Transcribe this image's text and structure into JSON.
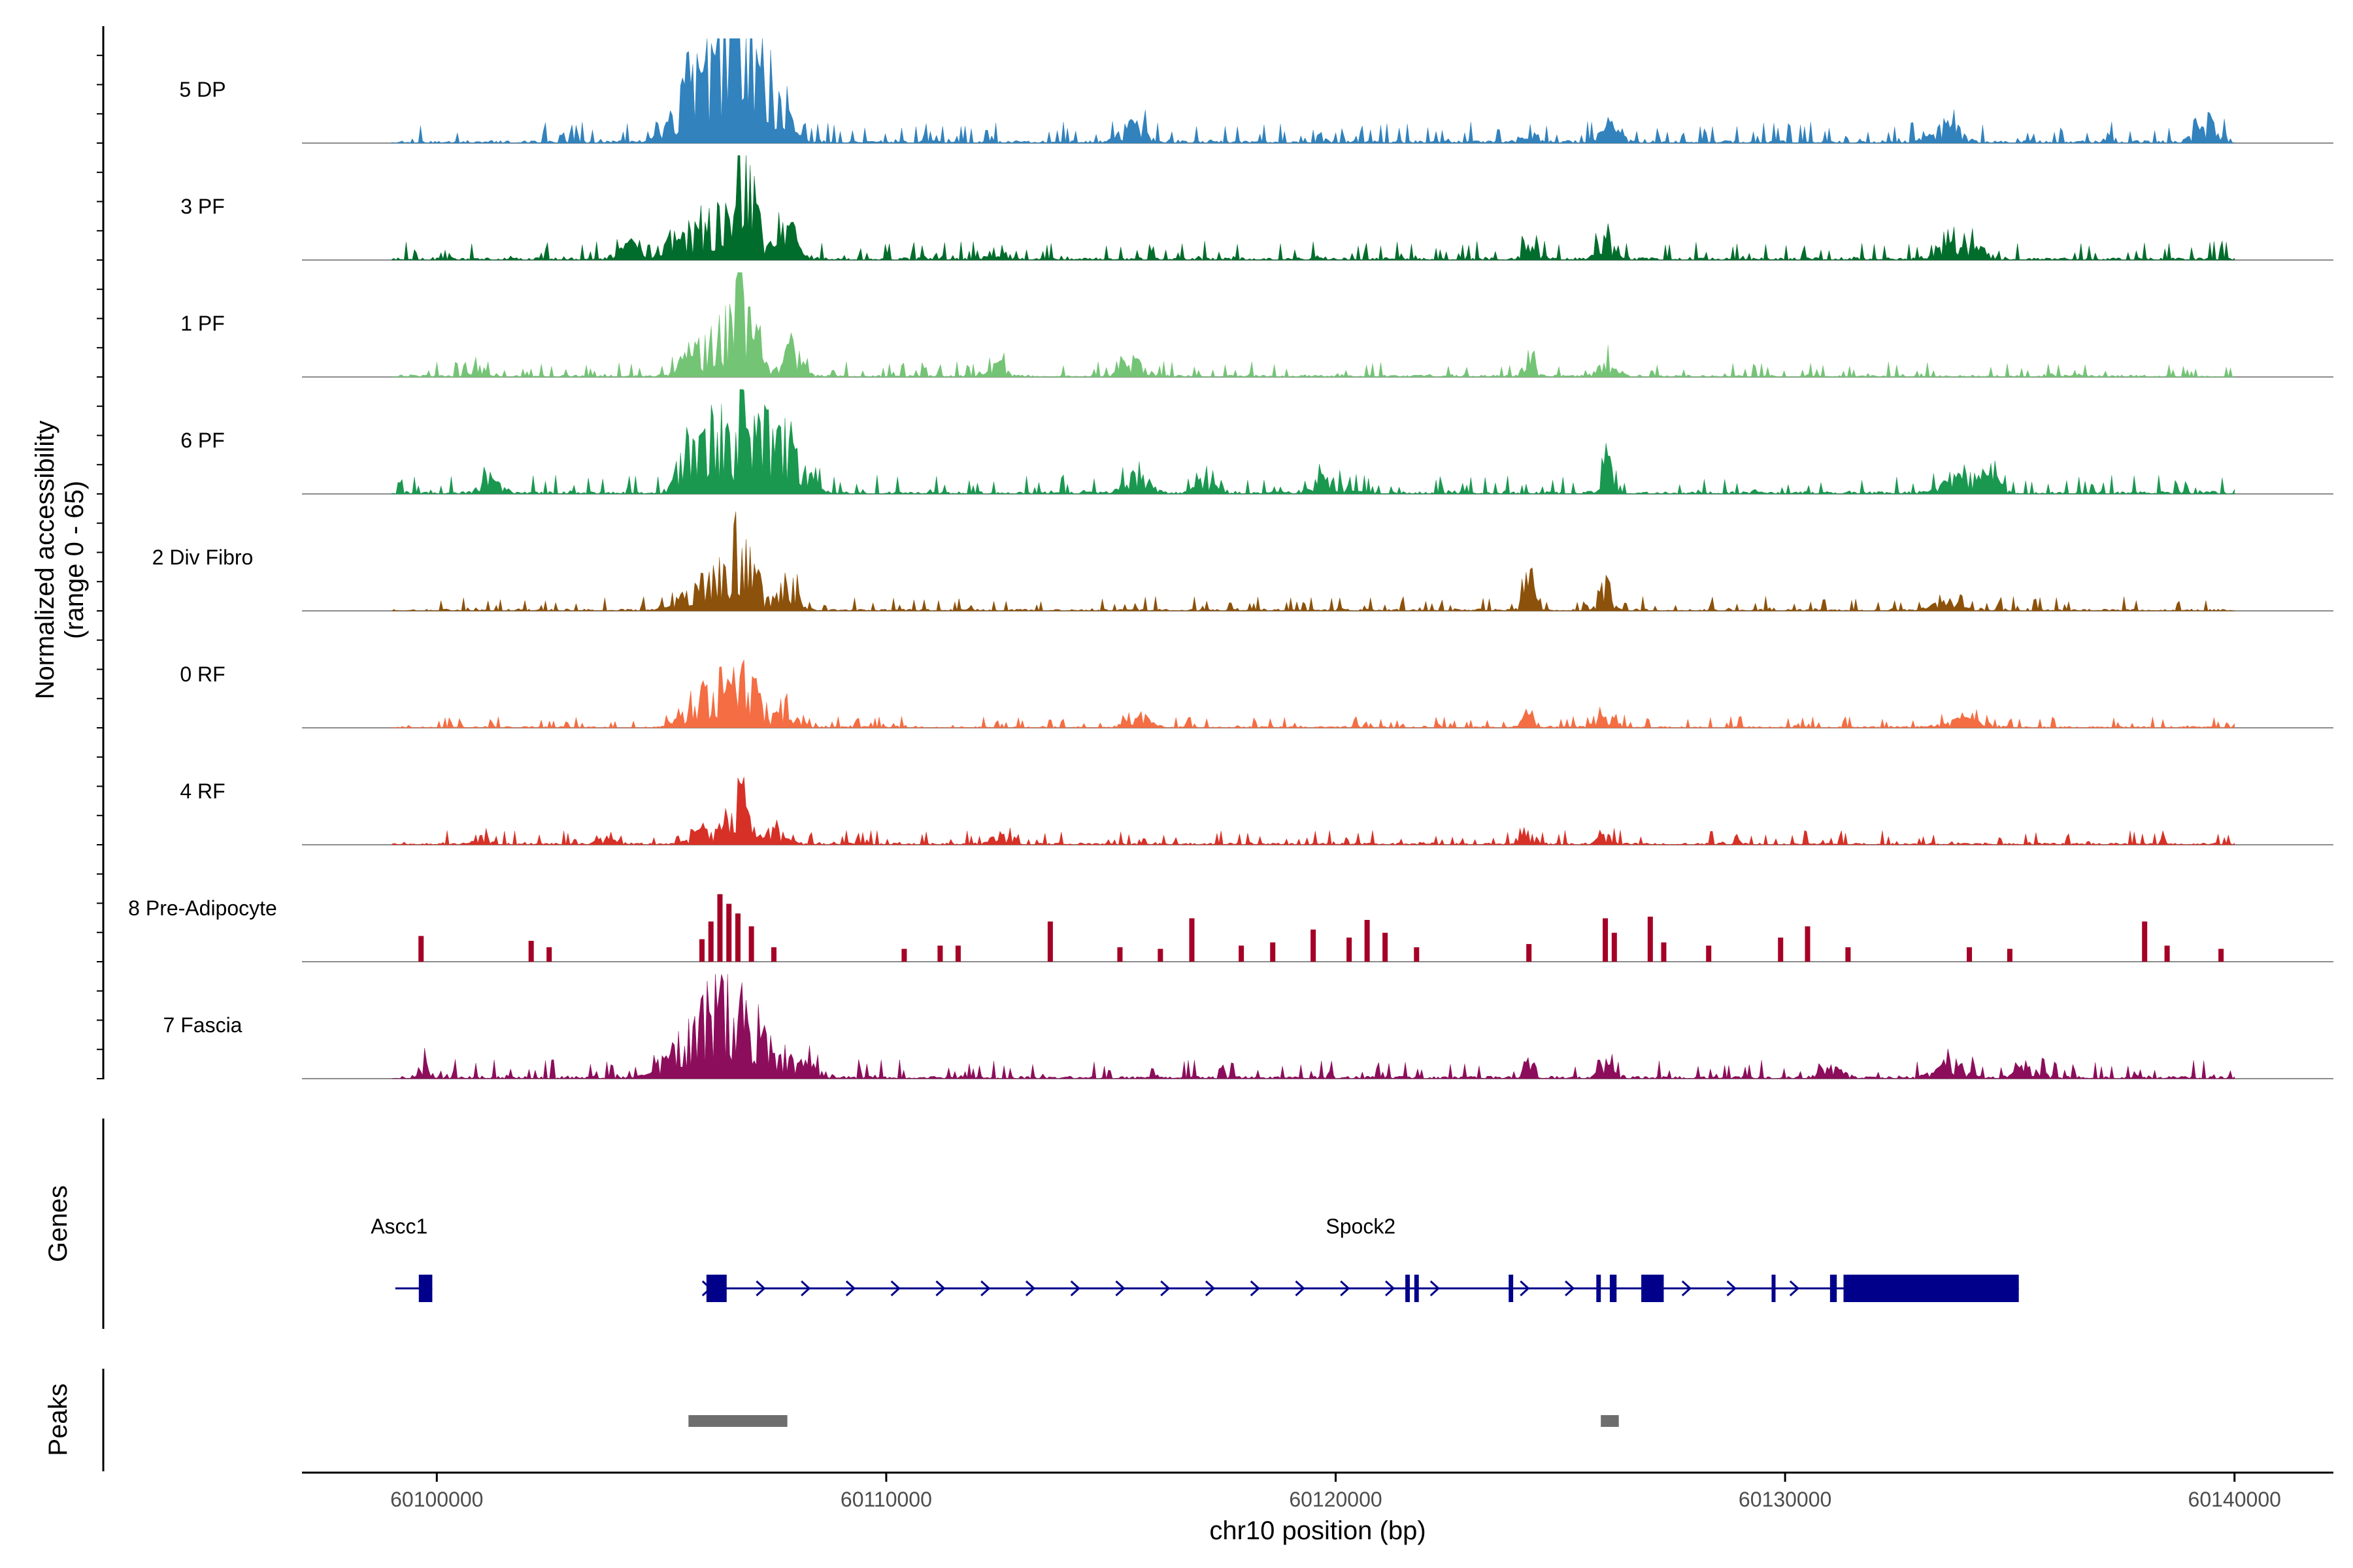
{
  "chart_data": {
    "type": "area",
    "subtype": "genome-coverage-tracks",
    "ylabel_line1": "Normalized accessibility",
    "ylabel_line2": "(range 0 - 65)",
    "ylim": [
      0,
      65
    ],
    "xlabel": "chr10 position (bp)",
    "xlim": [
      60097000,
      60142200
    ],
    "xticks": [
      60100000,
      60110000,
      60120000,
      60130000,
      60140000
    ],
    "xtick_labels": [
      "60100000",
      "60110000",
      "60120000",
      "60130000",
      "60140000"
    ],
    "data_range": [
      60099000,
      60140000
    ],
    "tracks": [
      {
        "name": "5 DP",
        "color": "#3182bd",
        "sparse": false,
        "seed": 11,
        "base": 2.2,
        "peaks": [
          [
            60105300,
            20,
            250
          ],
          [
            60105600,
            28,
            200
          ],
          [
            60105900,
            33,
            220
          ],
          [
            60106200,
            45,
            200
          ],
          [
            60106500,
            50,
            180
          ],
          [
            60106700,
            65,
            140
          ],
          [
            60106900,
            55,
            180
          ],
          [
            60107300,
            40,
            200
          ],
          [
            60107700,
            30,
            200
          ],
          [
            60115500,
            14,
            250
          ],
          [
            60124300,
            10,
            150
          ],
          [
            60126100,
            12,
            200
          ],
          [
            60133600,
            16,
            250
          ],
          [
            60139400,
            14,
            250
          ]
        ]
      },
      {
        "name": "3 PF",
        "color": "#006d2c",
        "sparse": false,
        "seed": 23,
        "base": 2.0,
        "peaks": [
          [
            60104400,
            12,
            300
          ],
          [
            60105300,
            17,
            250
          ],
          [
            60106000,
            22,
            250
          ],
          [
            60106400,
            30,
            200
          ],
          [
            60106800,
            50,
            150
          ],
          [
            60107000,
            42,
            200
          ],
          [
            60107800,
            30,
            180
          ],
          [
            60112500,
            10,
            150
          ],
          [
            60124300,
            10,
            150
          ],
          [
            60126000,
            20,
            150
          ],
          [
            60133600,
            10,
            300
          ],
          [
            60134200,
            8,
            300
          ]
        ]
      },
      {
        "name": "1 PF",
        "color": "#74c476",
        "sparse": false,
        "seed": 37,
        "base": 1.6,
        "peaks": [
          [
            60100900,
            10,
            150
          ],
          [
            60105700,
            22,
            250
          ],
          [
            60106300,
            36,
            200
          ],
          [
            60106700,
            55,
            150
          ],
          [
            60107000,
            38,
            200
          ],
          [
            60107900,
            20,
            200
          ],
          [
            60112500,
            10,
            150
          ],
          [
            60115500,
            12,
            250
          ],
          [
            60124300,
            22,
            100
          ],
          [
            60126000,
            14,
            150
          ]
        ]
      },
      {
        "name": "6 PF",
        "color": "#1a9850",
        "sparse": false,
        "seed": 41,
        "base": 2.0,
        "peaks": [
          [
            60101200,
            12,
            200
          ],
          [
            60105600,
            28,
            250
          ],
          [
            60106000,
            36,
            200
          ],
          [
            60106400,
            40,
            200
          ],
          [
            60106800,
            62,
            150
          ],
          [
            60107200,
            45,
            200
          ],
          [
            60107700,
            35,
            250
          ],
          [
            60108200,
            15,
            200
          ],
          [
            60115600,
            14,
            250
          ],
          [
            60117100,
            10,
            200
          ],
          [
            60119800,
            12,
            250
          ],
          [
            60126000,
            24,
            120
          ],
          [
            60133800,
            12,
            300
          ],
          [
            60134500,
            13,
            250
          ]
        ]
      },
      {
        "name": "2 Div Fibro",
        "color": "#8c510a",
        "sparse": false,
        "seed": 53,
        "base": 1.5,
        "peaks": [
          [
            60105600,
            12,
            250
          ],
          [
            60106200,
            28,
            250
          ],
          [
            60106700,
            50,
            180
          ],
          [
            60107000,
            30,
            200
          ],
          [
            60107800,
            25,
            200
          ],
          [
            60124300,
            25,
            120
          ],
          [
            60126000,
            22,
            120
          ],
          [
            60133600,
            7,
            300
          ]
        ]
      },
      {
        "name": "0 RF",
        "color": "#f46d43",
        "sparse": false,
        "seed": 67,
        "base": 1.2,
        "peaks": [
          [
            60105700,
            20,
            250
          ],
          [
            60106200,
            27,
            220
          ],
          [
            60106600,
            32,
            180
          ],
          [
            60107000,
            34,
            200
          ],
          [
            60107800,
            20,
            200
          ],
          [
            60115600,
            9,
            250
          ],
          [
            60124300,
            12,
            120
          ],
          [
            60126000,
            10,
            200
          ],
          [
            60134000,
            6,
            400
          ]
        ]
      },
      {
        "name": "4 RF",
        "color": "#d73027",
        "sparse": false,
        "seed": 79,
        "base": 1.5,
        "peaks": [
          [
            60101000,
            6,
            150
          ],
          [
            60103800,
            5,
            200
          ],
          [
            60106000,
            12,
            250
          ],
          [
            60106600,
            20,
            200
          ],
          [
            60106800,
            30,
            120
          ],
          [
            60107500,
            10,
            250
          ],
          [
            60112500,
            9,
            150
          ],
          [
            60124300,
            8,
            150
          ],
          [
            60126000,
            8,
            150
          ]
        ]
      },
      {
        "name": "8 Pre-Adipocyte",
        "color": "#a50026",
        "sparse": true,
        "seed": 83,
        "base": 0,
        "peaks": [
          [
            60099650,
            16,
            35
          ],
          [
            60102100,
            13,
            35
          ],
          [
            60102500,
            9,
            35
          ],
          [
            60105900,
            14,
            35
          ],
          [
            60106100,
            25,
            35
          ],
          [
            60106300,
            42,
            35
          ],
          [
            60106500,
            36,
            35
          ],
          [
            60106700,
            30,
            35
          ],
          [
            60107000,
            22,
            35
          ],
          [
            60107500,
            9,
            35
          ],
          [
            60110400,
            8,
            35
          ],
          [
            60111200,
            10,
            35
          ],
          [
            60111600,
            10,
            35
          ],
          [
            60113650,
            25,
            35
          ],
          [
            60115200,
            9,
            35
          ],
          [
            60116100,
            8,
            35
          ],
          [
            60116800,
            27,
            35
          ],
          [
            60117900,
            10,
            35
          ],
          [
            60118600,
            12,
            35
          ],
          [
            60119500,
            20,
            35
          ],
          [
            60120300,
            15,
            35
          ],
          [
            60120700,
            26,
            35
          ],
          [
            60121100,
            18,
            35
          ],
          [
            60121800,
            9,
            35
          ],
          [
            60124300,
            11,
            35
          ],
          [
            60126000,
            27,
            35
          ],
          [
            60126200,
            18,
            35
          ],
          [
            60127000,
            28,
            35
          ],
          [
            60127300,
            12,
            35
          ],
          [
            60128300,
            10,
            35
          ],
          [
            60129900,
            15,
            35
          ],
          [
            60130500,
            22,
            35
          ],
          [
            60131400,
            9,
            35
          ],
          [
            60134100,
            9,
            35
          ],
          [
            60135000,
            8,
            35
          ],
          [
            60138000,
            25,
            35
          ],
          [
            60138500,
            10,
            35
          ],
          [
            60139700,
            8,
            35
          ]
        ]
      },
      {
        "name": "7 Fascia",
        "color": "#8c0d5b",
        "sparse": false,
        "seed": 97,
        "base": 2.0,
        "peaks": [
          [
            60099700,
            10,
            150
          ],
          [
            60105300,
            22,
            300
          ],
          [
            60105900,
            38,
            250
          ],
          [
            60106300,
            50,
            200
          ],
          [
            60106700,
            42,
            200
          ],
          [
            60107100,
            35,
            200
          ],
          [
            60107600,
            20,
            250
          ],
          [
            60108300,
            10,
            250
          ],
          [
            60124300,
            14,
            120
          ],
          [
            60126000,
            10,
            150
          ],
          [
            60131000,
            8,
            250
          ],
          [
            60133700,
            12,
            300
          ],
          [
            60135400,
            10,
            250
          ]
        ]
      }
    ],
    "genes": {
      "title": "Genes",
      "names": [
        "Ascc1",
        "Spock2"
      ],
      "ascc1": {
        "start": 60099600,
        "end": 60099900,
        "exons": [
          [
            60099600,
            60099900
          ]
        ]
      },
      "spock2": {
        "start": 60106000,
        "end": 60135200,
        "exons": [
          [
            60106000,
            60106450
          ],
          [
            60121550,
            60121650
          ],
          [
            60121750,
            60121850
          ],
          [
            60123850,
            60123950
          ],
          [
            60125800,
            60125900
          ],
          [
            60126100,
            60126250
          ],
          [
            60126800,
            60127300
          ],
          [
            60129700,
            60129750
          ],
          [
            60131000,
            60131150
          ],
          [
            60131300,
            60135200
          ]
        ],
        "arrows": [
          60106000,
          60107200,
          60108200,
          60109200,
          60110200,
          60111200,
          60112200,
          60113200,
          60114200,
          60115200,
          60116200,
          60117200,
          60118200,
          60119200,
          60120200,
          60121200,
          60122200,
          60124200,
          60125200,
          60127800,
          60128800,
          60130200
        ]
      }
    },
    "peaks_track": {
      "title": "Peaks",
      "regions": [
        [
          60105600,
          60107800
        ],
        [
          60125900,
          60126300
        ]
      ]
    }
  }
}
